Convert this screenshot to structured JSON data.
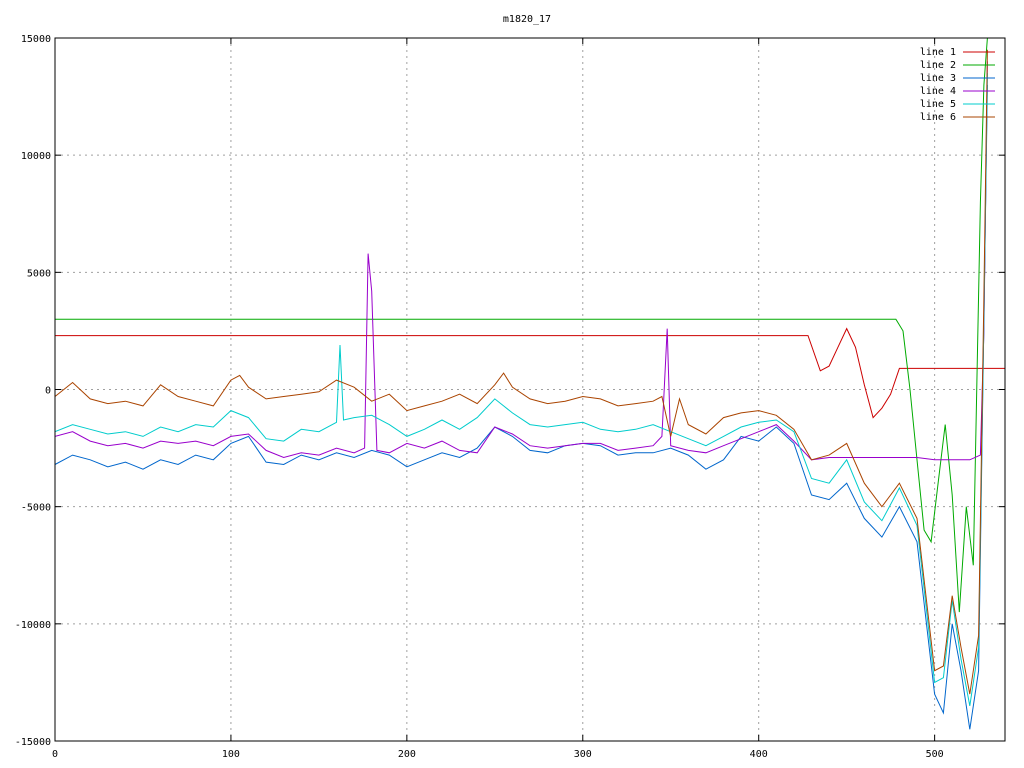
{
  "chart_data": {
    "type": "line",
    "title": "m1820_17",
    "xlabel": "",
    "ylabel": "",
    "xlim": [
      0,
      540
    ],
    "ylim": [
      -15000,
      15000
    ],
    "xticks": [
      0,
      100,
      200,
      300,
      400,
      500
    ],
    "yticks": [
      -15000,
      -10000,
      -5000,
      0,
      5000,
      10000,
      15000
    ],
    "grid": true,
    "legend_position": "top-right",
    "series": [
      {
        "name": "line 1",
        "color": "#cc0000",
        "x": [
          0,
          100,
          200,
          300,
          400,
          428,
          435,
          440,
          445,
          450,
          455,
          460,
          465,
          470,
          475,
          480,
          490,
          500,
          510,
          520,
          530,
          540
        ],
        "y": [
          2300,
          2300,
          2300,
          2300,
          2300,
          2300,
          800,
          1000,
          1800,
          2600,
          1800,
          200,
          -1200,
          -800,
          -200,
          900,
          900,
          900,
          900,
          900,
          900,
          900
        ]
      },
      {
        "name": "line 2",
        "color": "#00aa00",
        "x": [
          0,
          100,
          200,
          300,
          400,
          478,
          482,
          486,
          490,
          494,
          498,
          502,
          506,
          510,
          514,
          518,
          522,
          526,
          528,
          530
        ],
        "y": [
          3000,
          3000,
          3000,
          3000,
          3000,
          3000,
          2500,
          0,
          -3000,
          -6000,
          -6500,
          -4000,
          -1500,
          -4500,
          -9500,
          -5000,
          -7500,
          8000,
          13000,
          15000
        ]
      },
      {
        "name": "line 3",
        "color": "#0066cc",
        "x": [
          0,
          10,
          20,
          30,
          40,
          50,
          60,
          70,
          80,
          90,
          100,
          110,
          120,
          130,
          140,
          150,
          160,
          170,
          180,
          190,
          200,
          210,
          220,
          230,
          240,
          250,
          260,
          270,
          280,
          290,
          300,
          310,
          320,
          330,
          340,
          350,
          360,
          370,
          380,
          390,
          400,
          410,
          420,
          430,
          440,
          450,
          460,
          470,
          480,
          490,
          500,
          505,
          510,
          515,
          520,
          525,
          528,
          530
        ],
        "y": [
          -3200,
          -2800,
          -3000,
          -3300,
          -3100,
          -3400,
          -3000,
          -3200,
          -2800,
          -3000,
          -2300,
          -2000,
          -3100,
          -3200,
          -2800,
          -3000,
          -2700,
          -2900,
          -2600,
          -2800,
          -3300,
          -3000,
          -2700,
          -2900,
          -2500,
          -1600,
          -2000,
          -2600,
          -2700,
          -2400,
          -2300,
          -2400,
          -2800,
          -2700,
          -2700,
          -2500,
          -2800,
          -3400,
          -3000,
          -2000,
          -2200,
          -1600,
          -2300,
          -4500,
          -4700,
          -4000,
          -5500,
          -6300,
          -5000,
          -6500,
          -13000,
          -13800,
          -10000,
          -12000,
          -14500,
          -12000,
          3000,
          13000
        ]
      },
      {
        "name": "line 4",
        "color": "#9900cc",
        "x": [
          0,
          10,
          20,
          30,
          40,
          50,
          60,
          70,
          80,
          90,
          100,
          110,
          120,
          130,
          140,
          150,
          160,
          170,
          176,
          178,
          180,
          183,
          190,
          200,
          210,
          220,
          230,
          240,
          250,
          260,
          270,
          280,
          290,
          300,
          310,
          320,
          330,
          340,
          345,
          348,
          350,
          360,
          370,
          380,
          390,
          400,
          410,
          420,
          430,
          440,
          450,
          460,
          470,
          480,
          490,
          500,
          510,
          520,
          526,
          528,
          530
        ],
        "y": [
          -2000,
          -1800,
          -2200,
          -2400,
          -2300,
          -2500,
          -2200,
          -2300,
          -2200,
          -2400,
          -2000,
          -1900,
          -2600,
          -2900,
          -2700,
          -2800,
          -2500,
          -2700,
          -2500,
          5800,
          4200,
          -2600,
          -2700,
          -2300,
          -2500,
          -2200,
          -2600,
          -2700,
          -1600,
          -1900,
          -2400,
          -2500,
          -2400,
          -2300,
          -2300,
          -2600,
          -2500,
          -2400,
          -2000,
          2600,
          -2400,
          -2600,
          -2700,
          -2400,
          -2100,
          -1800,
          -1500,
          -2200,
          -3000,
          -2900,
          -2900,
          -2900,
          -2900,
          -2900,
          -2900,
          -3000,
          -3000,
          -3000,
          -2800,
          2500,
          14000
        ]
      },
      {
        "name": "line 5",
        "color": "#00cccc",
        "x": [
          0,
          10,
          20,
          30,
          40,
          50,
          60,
          70,
          80,
          90,
          100,
          110,
          120,
          130,
          140,
          150,
          160,
          162,
          164,
          170,
          180,
          190,
          200,
          210,
          220,
          230,
          240,
          250,
          255,
          260,
          270,
          280,
          290,
          300,
          310,
          320,
          330,
          340,
          350,
          360,
          370,
          380,
          390,
          400,
          410,
          420,
          430,
          440,
          450,
          460,
          470,
          480,
          490,
          500,
          505,
          510,
          515,
          520,
          525,
          528,
          530
        ],
        "y": [
          -1800,
          -1500,
          -1700,
          -1900,
          -1800,
          -2000,
          -1600,
          -1800,
          -1500,
          -1600,
          -900,
          -1200,
          -2100,
          -2200,
          -1700,
          -1800,
          -1400,
          1900,
          -1300,
          -1200,
          -1100,
          -1500,
          -2000,
          -1700,
          -1300,
          -1700,
          -1200,
          -400,
          -700,
          -1000,
          -1500,
          -1600,
          -1500,
          -1400,
          -1700,
          -1800,
          -1700,
          -1500,
          -1800,
          -2100,
          -2400,
          -2000,
          -1600,
          -1400,
          -1300,
          -1800,
          -3800,
          -4000,
          -3000,
          -4800,
          -5600,
          -4200,
          -5800,
          -12500,
          -12300,
          -9000,
          -11500,
          -13500,
          -11000,
          3000,
          13500
        ]
      },
      {
        "name": "line 6",
        "color": "#aa4400",
        "x": [
          0,
          10,
          20,
          30,
          40,
          50,
          60,
          70,
          80,
          90,
          100,
          105,
          110,
          120,
          130,
          140,
          150,
          160,
          170,
          180,
          190,
          200,
          210,
          220,
          230,
          240,
          250,
          255,
          260,
          270,
          280,
          290,
          300,
          310,
          320,
          330,
          340,
          345,
          350,
          355,
          360,
          370,
          380,
          390,
          400,
          410,
          420,
          430,
          440,
          450,
          460,
          470,
          480,
          490,
          500,
          505,
          510,
          515,
          520,
          525,
          528,
          530
        ],
        "y": [
          -300,
          300,
          -400,
          -600,
          -500,
          -700,
          200,
          -300,
          -500,
          -700,
          400,
          600,
          100,
          -400,
          -300,
          -200,
          -100,
          400,
          100,
          -500,
          -200,
          -900,
          -700,
          -500,
          -200,
          -600,
          200,
          700,
          100,
          -400,
          -600,
          -500,
          -300,
          -400,
          -700,
          -600,
          -500,
          -300,
          -2000,
          -400,
          -1500,
          -1900,
          -1200,
          -1000,
          -900,
          -1100,
          -1700,
          -3000,
          -2800,
          -2300,
          -4000,
          -5000,
          -4000,
          -5500,
          -12000,
          -11800,
          -8800,
          -11000,
          -13000,
          -10500,
          4000,
          14500
        ]
      }
    ]
  }
}
